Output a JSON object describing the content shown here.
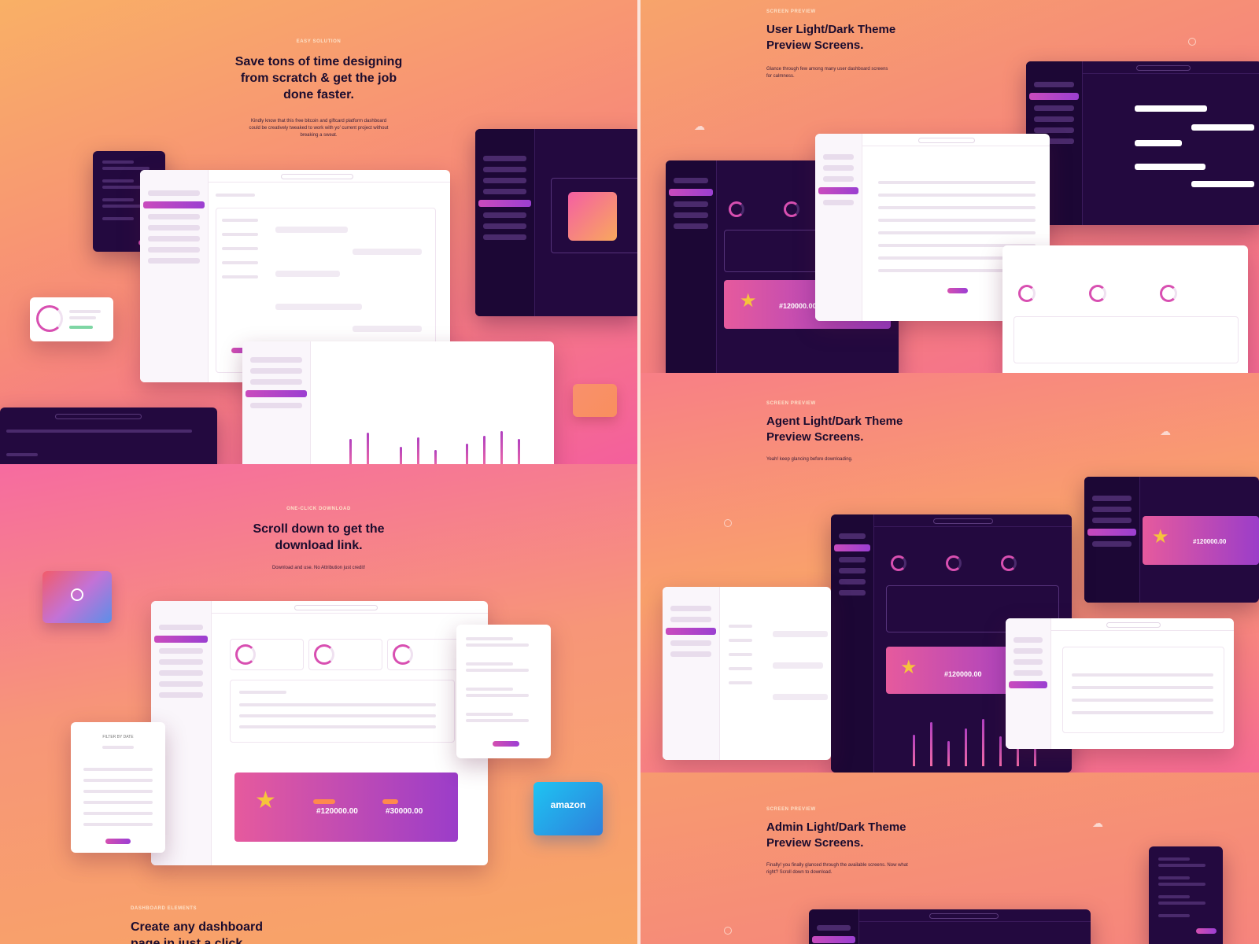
{
  "sections": {
    "easy": {
      "eyebrow": "EASY SOLUTION",
      "heading_l1": "Save tons of time designing",
      "heading_l2": "from scratch & get the job",
      "heading_l3": "done faster.",
      "sub_l1": "Kindly know that this free bitcoin and giftcard platform dashboard",
      "sub_l2": "could be creatively tweaked to work with yo' current project without",
      "sub_l3": "breaking a sweat."
    },
    "download": {
      "eyebrow": "ONE-CLICK DOWNLOAD",
      "heading_l1": "Scroll down to get the",
      "heading_l2": "download link.",
      "sub": "Download and use. No Attribution just credit!"
    },
    "elements": {
      "eyebrow": "DASHBOARD ELEMENTS",
      "heading_l1": "Create any dashboard",
      "heading_l2": "page in just a click"
    },
    "user": {
      "eyebrow": "SCREEN PREVIEW",
      "heading_l1": "User Light/Dark Theme",
      "heading_l2": "Preview Screens.",
      "sub_l1": "Glance through few among many user dashboard screens",
      "sub_l2": "for calmness."
    },
    "agent": {
      "eyebrow": "SCREEN PREVIEW",
      "heading_l1": "Agent Light/Dark Theme",
      "heading_l2": "Preview Screens.",
      "sub": "Yeah! keep glancing before downloading."
    },
    "admin": {
      "eyebrow": "SCREEN PREVIEW",
      "heading_l1": "Admin Light/Dark Theme",
      "heading_l2": "Preview Screens.",
      "sub_l1": "Finally! you finally glanced through the available screens. Now what",
      "sub_l2": "right? Scroll down to download."
    }
  },
  "widgets": {
    "amounts": [
      "#120000.00",
      "#30000.00"
    ],
    "amazon_label": "amazon",
    "calendar_title": "FILTER BY DATE"
  },
  "colors": {
    "accent": "#c94bbd",
    "dark_window": "#23093f",
    "heading": "#1b0c2e"
  }
}
